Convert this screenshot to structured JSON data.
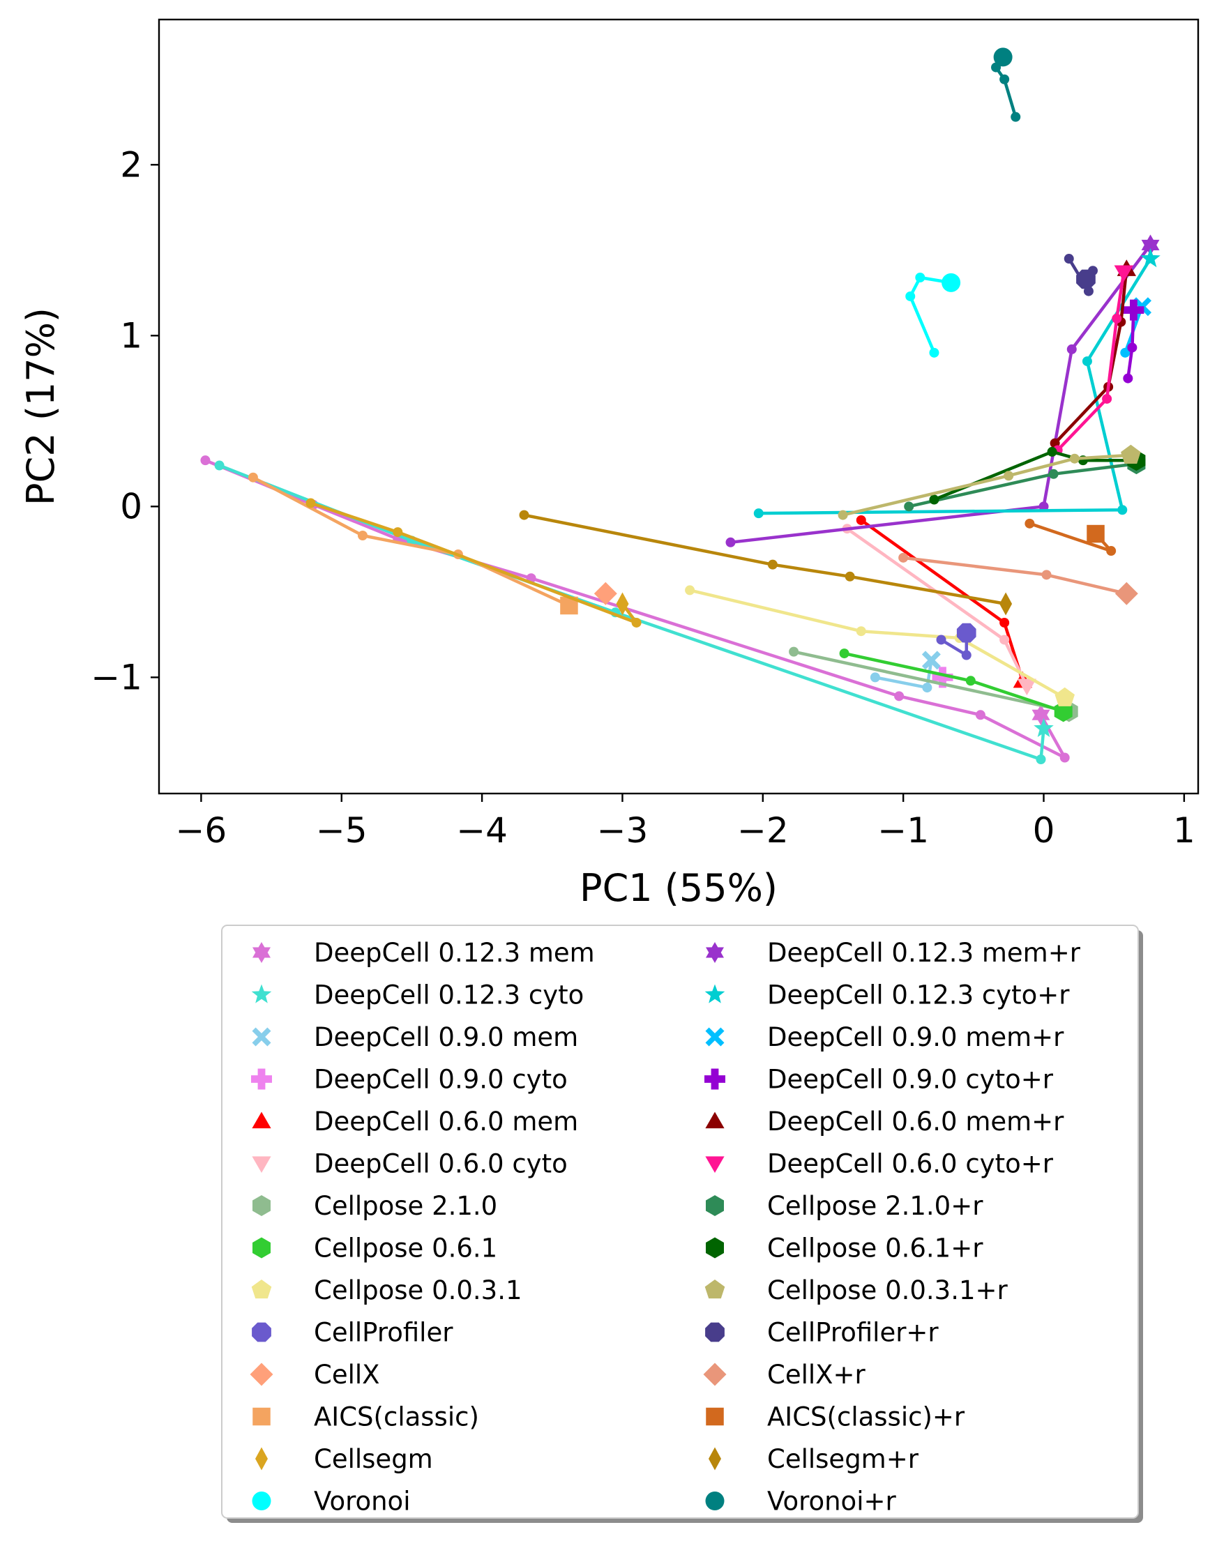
{
  "chart_data": {
    "type": "scatter",
    "title": "",
    "xlabel": "PC1 (55%)",
    "ylabel": "PC2 (17%)",
    "xlim": [
      -6.3,
      1.1
    ],
    "ylim": [
      -1.68,
      2.85
    ],
    "xticks": [
      {
        "value": -6,
        "label": "−6"
      },
      {
        "value": -5,
        "label": "−5"
      },
      {
        "value": -4,
        "label": "−4"
      },
      {
        "value": -3,
        "label": "−3"
      },
      {
        "value": -2,
        "label": "−2"
      },
      {
        "value": -1,
        "label": "−1"
      },
      {
        "value": 0,
        "label": "0"
      },
      {
        "value": 1,
        "label": "1"
      }
    ],
    "yticks": [
      {
        "value": -1,
        "label": "−1"
      },
      {
        "value": 0,
        "label": "0"
      },
      {
        "value": 1,
        "label": "1"
      },
      {
        "value": 2,
        "label": "2"
      }
    ],
    "grid": false,
    "legend_position": "below-plot",
    "series": [
      {
        "name": "DeepCell 0.12.3 mem",
        "color": "#da70d6",
        "marker": "star6",
        "points": [
          [
            -5.97,
            0.27
          ],
          [
            -5.2,
            0.01
          ],
          [
            -4.6,
            -0.19
          ],
          [
            -3.65,
            -0.42
          ],
          [
            -1.03,
            -1.11
          ],
          [
            -0.45,
            -1.22
          ],
          [
            0.15,
            -1.47
          ],
          [
            -0.02,
            -1.22
          ]
        ]
      },
      {
        "name": "DeepCell 0.12.3 cyto",
        "color": "#40e0d0",
        "marker": "star5",
        "points": [
          [
            -5.87,
            0.24
          ],
          [
            -4.5,
            -0.2
          ],
          [
            -3.05,
            -0.62
          ],
          [
            -0.02,
            -1.48
          ],
          [
            0.0,
            -1.3
          ]
        ]
      },
      {
        "name": "DeepCell 0.9.0 mem",
        "color": "#87ceeb",
        "marker": "x",
        "points": [
          [
            -1.2,
            -1.0
          ],
          [
            -0.83,
            -1.06
          ],
          [
            -0.8,
            -0.9
          ]
        ]
      },
      {
        "name": "DeepCell 0.9.0 cyto",
        "color": "#ee82ee",
        "marker": "plus",
        "points": [
          [
            -0.72,
            -1.0
          ]
        ]
      },
      {
        "name": "DeepCell 0.6.0 mem",
        "color": "#ff0000",
        "marker": "triangle-up",
        "points": [
          [
            -1.3,
            -0.08
          ],
          [
            -0.28,
            -0.68
          ],
          [
            -0.15,
            -1.02
          ]
        ]
      },
      {
        "name": "DeepCell 0.6.0 cyto",
        "color": "#ffb6c1",
        "marker": "triangle-down",
        "points": [
          [
            -1.4,
            -0.13
          ],
          [
            -0.28,
            -0.78
          ],
          [
            -0.12,
            -1.05
          ]
        ]
      },
      {
        "name": "Cellpose 2.1.0",
        "color": "#8fbc8f",
        "marker": "hexagon",
        "points": [
          [
            -1.78,
            -0.85
          ],
          [
            0.18,
            -1.2
          ]
        ]
      },
      {
        "name": "Cellpose 0.6.1",
        "color": "#32cd32",
        "marker": "hexagon",
        "points": [
          [
            -1.42,
            -0.86
          ],
          [
            -0.52,
            -1.02
          ],
          [
            0.14,
            -1.2
          ]
        ]
      },
      {
        "name": "Cellpose 0.0.3.1",
        "color": "#f0e68c",
        "marker": "pentagon",
        "points": [
          [
            -2.52,
            -0.49
          ],
          [
            -1.3,
            -0.73
          ],
          [
            -0.6,
            -0.77
          ],
          [
            0.15,
            -1.12
          ]
        ]
      },
      {
        "name": "CellProfiler",
        "color": "#6a5acd",
        "marker": "octagon",
        "points": [
          [
            -0.73,
            -0.78
          ],
          [
            -0.55,
            -0.87
          ],
          [
            -0.55,
            -0.74
          ]
        ]
      },
      {
        "name": "CellX",
        "color": "#ffa07a",
        "marker": "diamond",
        "points": [
          [
            -3.12,
            -0.51
          ]
        ]
      },
      {
        "name": "AICS(classic)",
        "color": "#f4a460",
        "marker": "square",
        "points": [
          [
            -5.63,
            0.17
          ],
          [
            -4.85,
            -0.17
          ],
          [
            -4.17,
            -0.28
          ],
          [
            -3.38,
            -0.58
          ]
        ]
      },
      {
        "name": "Cellsegm",
        "color": "#daa520",
        "marker": "thin-diamond",
        "points": [
          [
            -5.22,
            0.02
          ],
          [
            -4.6,
            -0.15
          ],
          [
            -2.9,
            -0.68
          ],
          [
            -3.0,
            -0.57
          ]
        ]
      },
      {
        "name": "Voronoi",
        "color": "#00ffff",
        "marker": "circle",
        "points": [
          [
            -0.78,
            0.9
          ],
          [
            -0.95,
            1.23
          ],
          [
            -0.88,
            1.34
          ],
          [
            -0.66,
            1.31
          ]
        ]
      },
      {
        "name": "DeepCell 0.12.3 mem+r",
        "color": "#9932cc",
        "marker": "star6",
        "points": [
          [
            -2.23,
            -0.21
          ],
          [
            0.0,
            0.0
          ],
          [
            0.2,
            0.92
          ],
          [
            0.76,
            1.53
          ]
        ]
      },
      {
        "name": "DeepCell 0.12.3 cyto+r",
        "color": "#00ced1",
        "marker": "star5",
        "points": [
          [
            -2.03,
            -0.04
          ],
          [
            0.56,
            -0.02
          ],
          [
            0.31,
            0.85
          ],
          [
            0.76,
            1.45
          ]
        ]
      },
      {
        "name": "DeepCell 0.9.0 mem+r",
        "color": "#00bfff",
        "marker": "x",
        "points": [
          [
            0.58,
            0.9
          ],
          [
            0.7,
            1.17
          ]
        ]
      },
      {
        "name": "DeepCell 0.9.0 cyto+r",
        "color": "#9400d3",
        "marker": "plus",
        "points": [
          [
            0.6,
            0.75
          ],
          [
            0.63,
            0.93
          ],
          [
            0.64,
            1.15
          ]
        ]
      },
      {
        "name": "DeepCell 0.6.0 mem+r",
        "color": "#8b0000",
        "marker": "triangle-up",
        "points": [
          [
            0.08,
            0.37
          ],
          [
            0.46,
            0.7
          ],
          [
            0.55,
            1.08
          ],
          [
            0.59,
            1.39
          ]
        ]
      },
      {
        "name": "DeepCell 0.6.0 cyto+r",
        "color": "#ff1493",
        "marker": "triangle-down",
        "points": [
          [
            0.1,
            0.33
          ],
          [
            0.45,
            0.63
          ],
          [
            0.52,
            1.1
          ],
          [
            0.57,
            1.37
          ]
        ]
      },
      {
        "name": "Cellpose 2.1.0+r",
        "color": "#2e8b57",
        "marker": "hexagon",
        "points": [
          [
            -0.96,
            0.0
          ],
          [
            0.07,
            0.19
          ],
          [
            0.66,
            0.25
          ]
        ]
      },
      {
        "name": "Cellpose 0.6.1+r",
        "color": "#006400",
        "marker": "hexagon",
        "points": [
          [
            -0.78,
            0.04
          ],
          [
            0.06,
            0.32
          ],
          [
            0.28,
            0.27
          ],
          [
            0.66,
            0.27
          ]
        ]
      },
      {
        "name": "Cellpose 0.0.3.1+r",
        "color": "#bdb76b",
        "marker": "pentagon",
        "points": [
          [
            -1.43,
            -0.05
          ],
          [
            -0.25,
            0.18
          ],
          [
            0.22,
            0.28
          ],
          [
            0.62,
            0.3
          ]
        ]
      },
      {
        "name": "CellProfiler+r",
        "color": "#483d8b",
        "marker": "octagon",
        "points": [
          [
            0.18,
            1.45
          ],
          [
            0.32,
            1.26
          ],
          [
            0.35,
            1.38
          ],
          [
            0.3,
            1.33
          ]
        ]
      },
      {
        "name": "CellX+r",
        "color": "#e9967a",
        "marker": "diamond",
        "points": [
          [
            -1.0,
            -0.3
          ],
          [
            0.02,
            -0.4
          ],
          [
            0.59,
            -0.51
          ]
        ]
      },
      {
        "name": "AICS(classic)+r",
        "color": "#d2691e",
        "marker": "square",
        "points": [
          [
            -0.1,
            -0.1
          ],
          [
            0.48,
            -0.26
          ],
          [
            0.37,
            -0.16
          ]
        ]
      },
      {
        "name": "Cellsegm+r",
        "color": "#b8860b",
        "marker": "thin-diamond",
        "points": [
          [
            -3.7,
            -0.05
          ],
          [
            -1.93,
            -0.34
          ],
          [
            -1.38,
            -0.41
          ],
          [
            -0.27,
            -0.57
          ]
        ]
      },
      {
        "name": "Voronoi+r",
        "color": "#008080",
        "marker": "circle",
        "points": [
          [
            -0.2,
            2.28
          ],
          [
            -0.28,
            2.5
          ],
          [
            -0.34,
            2.57
          ],
          [
            -0.29,
            2.63
          ]
        ]
      }
    ]
  }
}
